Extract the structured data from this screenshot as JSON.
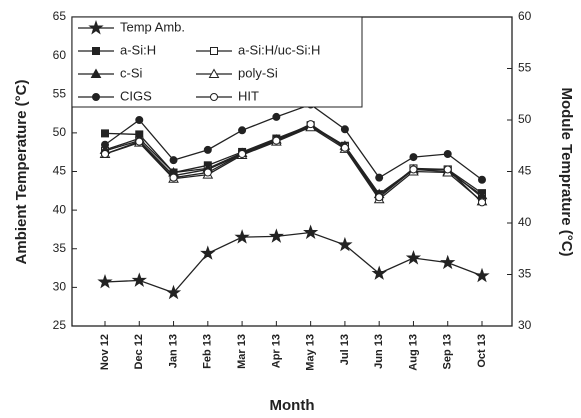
{
  "chart_data": {
    "type": "line",
    "x_label": "Month",
    "y_label": "Ambient Temperature (°C)",
    "y2_label": "Module Temprature (°C)",
    "categories": [
      "Nov 12",
      "Dec 12",
      "Jan 13",
      "Feb 13",
      "Mar 13",
      "Apr 13",
      "May 13",
      "Jul 13",
      "Jun 13",
      "Aug 13",
      "Sep 13",
      "Oct 13"
    ],
    "ylim": [
      25,
      65
    ],
    "yticks": [
      25,
      30,
      35,
      40,
      45,
      50,
      55,
      60,
      65
    ],
    "y2lim": [
      30,
      60
    ],
    "y2ticks": [
      30,
      35,
      40,
      45,
      50,
      55,
      60
    ],
    "series": [
      {
        "name": "Temp Amb.",
        "color": "#222222",
        "marker": "star",
        "axis": "y",
        "values": [
          30.7,
          30.9,
          29.3,
          34.4,
          36.5,
          36.6,
          37.1,
          35.5,
          31.8,
          33.8,
          33.2,
          31.5
        ]
      },
      {
        "name": "a-Si:H",
        "color": "#222222",
        "marker": "square-filled",
        "axis": "y2",
        "values": [
          48.7,
          48.6,
          44.9,
          45.6,
          46.9,
          48.2,
          49.5,
          47.5,
          42.8,
          45.2,
          45.2,
          42.9
        ]
      },
      {
        "name": "a-Si:H/uc-Si:H",
        "color": "#222222",
        "marker": "square-open",
        "axis": "y2",
        "values": [
          47.0,
          48.0,
          44.6,
          45.2,
          46.7,
          48.0,
          49.4,
          47.4,
          42.6,
          45.3,
          45.2,
          42.5
        ]
      },
      {
        "name": "c-Si",
        "color": "#222222",
        "marker": "triangle-filled",
        "axis": "y2",
        "values": [
          47.1,
          48.2,
          44.9,
          45.3,
          46.8,
          48.1,
          49.4,
          47.5,
          42.8,
          45.2,
          45.0,
          42.7
        ]
      },
      {
        "name": "poly-Si",
        "color": "#222222",
        "marker": "triangle-open",
        "axis": "y2",
        "values": [
          46.7,
          47.8,
          44.3,
          44.7,
          46.6,
          47.9,
          49.3,
          47.2,
          42.3,
          45.0,
          44.9,
          42.1
        ]
      },
      {
        "name": "CIGS",
        "color": "#222222",
        "marker": "circle-filled",
        "axis": "y2",
        "values": [
          47.6,
          50.0,
          46.1,
          47.1,
          49.0,
          50.3,
          51.5,
          49.1,
          44.4,
          46.4,
          46.7,
          44.2
        ]
      },
      {
        "name": "HIT",
        "color": "#222222",
        "marker": "circle-open",
        "axis": "y2",
        "values": [
          46.7,
          47.9,
          44.4,
          44.9,
          46.7,
          48.0,
          49.6,
          47.3,
          42.5,
          45.2,
          45.2,
          42.0
        ]
      }
    ]
  }
}
